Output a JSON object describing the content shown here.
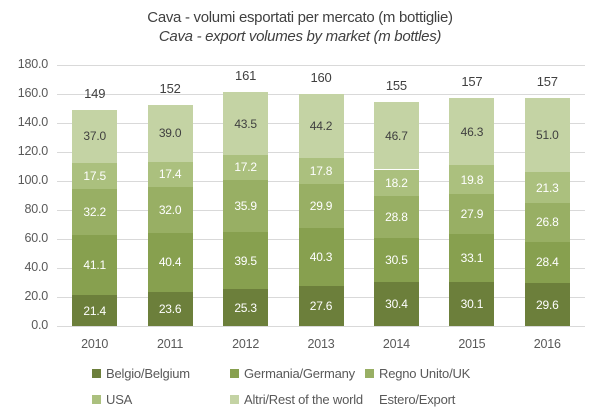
{
  "chart_data": {
    "type": "bar",
    "stacked": true,
    "title": "Cava - volumi esportati per mercato (m bottiglie)",
    "subtitle": "Cava - export volumes by market (m bottles)",
    "categories": [
      "2010",
      "2011",
      "2012",
      "2013",
      "2014",
      "2015",
      "2016"
    ],
    "series": [
      {
        "name": "Belgio/Belgium",
        "color": "#6c7f3b",
        "label_color": "#ffffff",
        "values": [
          21.4,
          23.6,
          25.3,
          27.6,
          30.4,
          30.1,
          29.6
        ]
      },
      {
        "name": "Germania/Germany",
        "color": "#87a04f",
        "label_color": "#ffffff",
        "values": [
          41.1,
          40.4,
          39.5,
          40.3,
          30.5,
          33.1,
          28.4
        ]
      },
      {
        "name": "Regno Unito/UK",
        "color": "#98af64",
        "label_color": "#ffffff",
        "values": [
          32.2,
          32.0,
          35.9,
          29.9,
          28.8,
          27.9,
          26.8
        ]
      },
      {
        "name": "USA",
        "color": "#abc07e",
        "label_color": "#ffffff",
        "values": [
          17.5,
          17.4,
          17.2,
          17.8,
          18.2,
          19.8,
          21.3
        ]
      },
      {
        "name": "Altri/Rest of the world",
        "color": "#c4d3a4",
        "label_color": "#404040",
        "values": [
          37.0,
          39.0,
          43.5,
          44.2,
          46.7,
          46.3,
          51.0
        ]
      }
    ],
    "totals_series": {
      "name": "Estero/Export",
      "color": null,
      "values": [
        149,
        152,
        161,
        160,
        155,
        157,
        157
      ]
    },
    "y_axis": {
      "min": 0,
      "max": 180,
      "step": 20,
      "tick_decimals": 1
    },
    "grid": true,
    "legend_position": "bottom",
    "colors": {
      "grid": "#d9d9d9",
      "axis_text": "#595959",
      "title_text": "#404040",
      "total_label_text": "#404040"
    }
  }
}
